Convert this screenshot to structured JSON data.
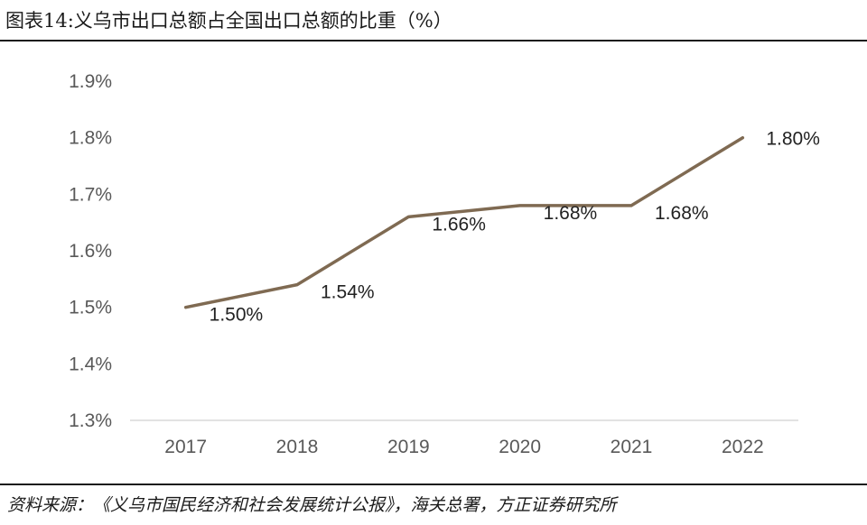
{
  "header": {
    "title": "图表14:义乌市出口总额占全国出口总额的比重（%）"
  },
  "footer": {
    "source": "资料来源：《义乌市国民经济和社会发展统计公报》，海关总署，方正证券研究所"
  },
  "colors": {
    "line": "#7f6a52",
    "axis": "#d9d9d9",
    "rule": "#1a1a1a"
  },
  "chart_data": {
    "type": "line",
    "title": "图表14:义乌市出口总额占全国出口总额的比重（%）",
    "categories": [
      "2017",
      "2018",
      "2019",
      "2020",
      "2021",
      "2022"
    ],
    "series": [
      {
        "values": [
          1.5,
          1.54,
          1.66,
          1.68,
          1.68,
          1.8
        ]
      }
    ],
    "data_labels": [
      "1.50%",
      "1.54%",
      "1.66%",
      "1.68%",
      "1.68%",
      "1.80%"
    ],
    "ylim": [
      1.3,
      1.9
    ],
    "yticks": [
      1.3,
      1.4,
      1.5,
      1.6,
      1.7,
      1.8,
      1.9
    ],
    "ytick_labels": [
      "1.3%",
      "1.4%",
      "1.5%",
      "1.6%",
      "1.7%",
      "1.8%",
      "1.9%"
    ],
    "xlabel": "",
    "ylabel": "",
    "grid": false,
    "legend": "none"
  }
}
